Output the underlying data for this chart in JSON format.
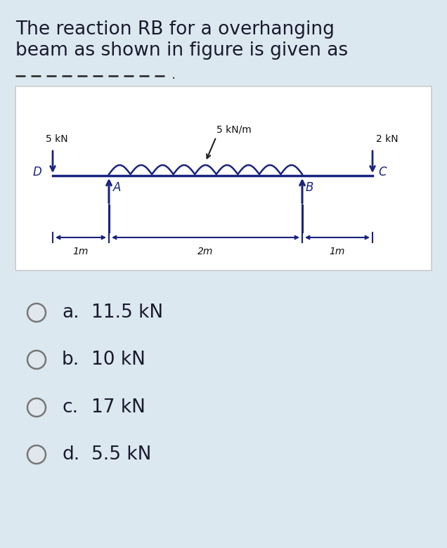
{
  "title_line1": "The reaction RB for a overhanging",
  "title_line2": "beam as shown in figure is given as",
  "bg_color": "#dce8f0",
  "fig_box_color": "#ffffff",
  "beam_color": "#1a237e",
  "label_5kN": "5 kN",
  "label_5kNm": "5 kN/m",
  "label_2kN": "2 kN",
  "label_D": "D",
  "label_A": "A",
  "label_B": "B",
  "label_C": "C",
  "dim_1m_left": "1m",
  "dim_2m": "2m",
  "dim_1m_right": "1m",
  "options": [
    {
      "letter": "a.",
      "text": "11.5 kN"
    },
    {
      "letter": "b.",
      "text": "10 kN"
    },
    {
      "letter": "c.",
      "text": "17 kN"
    },
    {
      "letter": "d.",
      "text": "5.5 kN"
    }
  ],
  "title_fontsize": 19,
  "option_fontsize": 19,
  "dash_color": "#333333"
}
